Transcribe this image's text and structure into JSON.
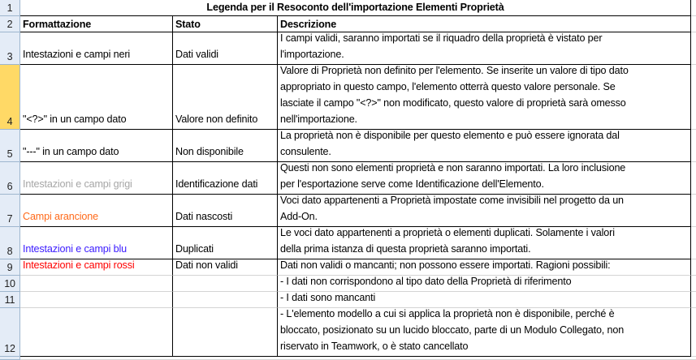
{
  "title": "Legenda per il Resoconto dell'importazione Elementi Proprietà",
  "headers": {
    "formatting": "Formattazione",
    "status": "Stato",
    "description": "Descrizione"
  },
  "selected_row": "4",
  "colors": {
    "black": "#000000",
    "gray": "#a6a6a6",
    "orange": "#ff6a1a",
    "blue": "#3a1aff",
    "red": "#ff0000",
    "selected_row_header": "#ffd966"
  },
  "rows": [
    {
      "num": "3",
      "formatting": "Intestazioni e campi neri",
      "color": "#000000",
      "status": "Dati validi",
      "lines": [
        "I campi validi, saranno importati se il riquadro della proprietà è vistato per",
        "l'importazione."
      ]
    },
    {
      "num": "4",
      "formatting": " \"<?>\"  in un campo dato",
      "color": "#000000",
      "status": "Valore non definito",
      "lines": [
        "Valore di Proprietà non definito per l'elemento. Se inserite un valore di tipo dato",
        "appropriato in questo campo, l'elemento otterrà questo valore personale. Se",
        "lasciate il campo \"<?>\"  non modificato, questo valore di proprietà sarà omesso",
        "nell'importazione."
      ]
    },
    {
      "num": "5",
      "formatting": " \"---\"  in un campo dato",
      "color": "#000000",
      "status": "Non disponibile",
      "lines": [
        "La proprietà non è disponibile per questo elemento e può essere ignorata dal",
        "consulente."
      ]
    },
    {
      "num": "6",
      "formatting": "Intestazioni e campi grigi",
      "color": "#a6a6a6",
      "status": "Identificazione dati",
      "lines": [
        "Questi non sono elementi proprietà e non saranno importati. La loro inclusione",
        "per l'esportazione serve come Identificazione dell'Elemento."
      ]
    },
    {
      "num": "7",
      "formatting": "Campi arancione",
      "color": "#ff6a1a",
      "status": "Dati nascosti",
      "lines": [
        "Voci dato appartenenti a Proprietà impostate come invisibili nel progetto da un",
        "Add-On."
      ]
    },
    {
      "num": "8",
      "formatting": "Intestazioni e campi blu",
      "color": "#3a1aff",
      "status": "Duplicati",
      "lines": [
        "Le voci dato appartenenti a proprietà o elementi duplicati. Solamente i valori",
        "della prima istanza di questa proprietà saranno importati."
      ]
    },
    {
      "num": "9",
      "formatting": "Intestazioni e campi rossi",
      "color": "#ff0000",
      "status": "Dati non validi",
      "lines": [
        "Dati non validi o mancanti; non possono essere importati. Ragioni possibili:"
      ]
    },
    {
      "num": "10",
      "formatting": "",
      "color": "#000000",
      "status": "",
      "lines": [
        "- I dati non corrispondono al tipo dato della Proprietà di riferimento"
      ]
    },
    {
      "num": "11",
      "formatting": "",
      "color": "#000000",
      "status": "",
      "lines": [
        "- I dati sono mancanti"
      ]
    },
    {
      "num": "12",
      "formatting": "",
      "color": "#000000",
      "status": "",
      "lines": [
        "- L'elemento modello a cui si applica la proprietà non è disponibile, perché è",
        "bloccato, posizionato su un lucido bloccato, parte di un Modulo Collegato, non",
        "riservato in Teamwork, o è stato cancellato"
      ]
    }
  ]
}
